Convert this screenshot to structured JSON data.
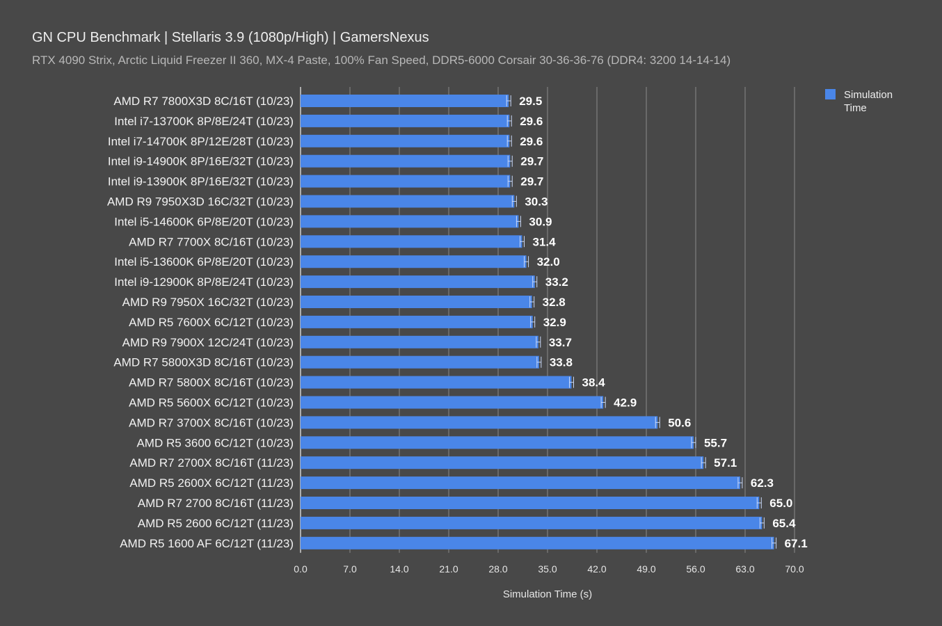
{
  "chart_data": {
    "type": "bar",
    "orientation": "horizontal",
    "title": "GN CPU Benchmark | Stellaris 3.9 (1080p/High) | GamersNexus",
    "subtitle": "RTX 4090 Strix, Arctic Liquid Freezer II 360, MX-4 Paste, 100% Fan Speed, DDR5-6000 Corsair 30-36-36-76 (DDR4: 3200 14-14-14)",
    "xlabel": "Simulation Time (s)",
    "ylabel": "",
    "xlim": [
      0,
      70
    ],
    "xticks": [
      "0.0",
      "7.0",
      "14.0",
      "21.0",
      "28.0",
      "35.0",
      "42.0",
      "49.0",
      "56.0",
      "63.0",
      "70.0"
    ],
    "grid": true,
    "legend": {
      "position": "top-right",
      "entries": [
        "Simulation Time"
      ]
    },
    "bar_color": "#4a86e8",
    "categories": [
      "AMD R7 7800X3D 8C/16T (10/23)",
      "Intel i7-13700K 8P/8E/24T (10/23)",
      "Intel i7-14700K 8P/12E/28T (10/23)",
      "Intel i9-14900K 8P/16E/32T (10/23)",
      "Intel i9-13900K 8P/16E/32T (10/23)",
      "AMD R9 7950X3D 16C/32T (10/23)",
      "Intel i5-14600K 6P/8E/20T (10/23)",
      "AMD R7 7700X 8C/16T (10/23)",
      "Intel i5-13600K 6P/8E/20T (10/23)",
      "Intel i9-12900K 8P/8E/24T (10/23)",
      "AMD R9 7950X 16C/32T (10/23)",
      "AMD R5 7600X 6C/12T (10/23)",
      "AMD R9 7900X 12C/24T (10/23)",
      "AMD R7 5800X3D 8C/16T (10/23)",
      "AMD R7 5800X 8C/16T (10/23)",
      "AMD R5 5600X 6C/12T (10/23)",
      "AMD R7 3700X 8C/16T (10/23)",
      "AMD R5 3600 6C/12T (10/23)",
      "AMD R7 2700X 8C/16T (11/23)",
      "AMD R5 2600X 6C/12T (11/23)",
      "AMD R7 2700 8C/16T (11/23)",
      "AMD R5 2600 6C/12T (11/23)",
      "AMD R5 1600 AF 6C/12T (11/23)"
    ],
    "values": [
      29.5,
      29.6,
      29.6,
      29.7,
      29.7,
      30.3,
      30.9,
      31.4,
      32.0,
      33.2,
      32.8,
      32.9,
      33.7,
      33.8,
      38.4,
      42.9,
      50.6,
      55.7,
      57.1,
      62.3,
      65.0,
      65.4,
      67.1
    ],
    "value_labels": [
      "29.5",
      "29.6",
      "29.6",
      "29.7",
      "29.7",
      "30.3",
      "30.9",
      "31.4",
      "32.0",
      "33.2",
      "32.8",
      "32.9",
      "33.7",
      "33.8",
      "38.4",
      "42.9",
      "50.6",
      "55.7",
      "57.1",
      "62.3",
      "65.0",
      "65.4",
      "67.1"
    ]
  }
}
